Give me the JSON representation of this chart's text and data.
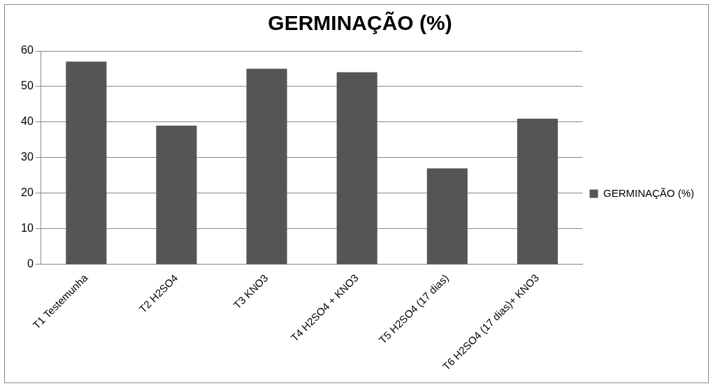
{
  "chart_data": {
    "type": "bar",
    "title": "GERMINAÇÃO (%)",
    "categories": [
      "T1 Testemunha",
      "T2 H2SO4",
      "T3 KNO3",
      "T4 H2SO4 + KNO3",
      "T5 H2SO4 (17 dias)",
      "T6 H2SO4 (17 dias)+ KNO3"
    ],
    "series": [
      {
        "name": "GERMINAÇÃO (%)",
        "color": "#555555",
        "values": [
          57,
          39,
          55,
          54,
          27,
          41
        ]
      }
    ],
    "ylim": [
      0,
      60
    ],
    "yticks": [
      0,
      10,
      20,
      30,
      40,
      50,
      60
    ],
    "grid": "y",
    "legend": "right"
  }
}
